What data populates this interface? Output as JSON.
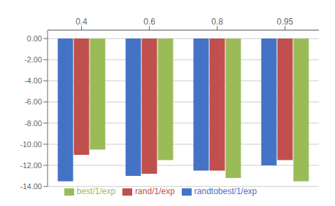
{
  "chart_data": {
    "type": "bar",
    "categories": [
      "0.4",
      "0.6",
      "0.8",
      "0.95"
    ],
    "series": [
      {
        "name": "randtobest/1/exp",
        "color": "#4472C4",
        "values": [
          -13.5,
          -13.0,
          -12.5,
          -12.0
        ]
      },
      {
        "name": "rand/1/exp",
        "color": "#C0504D",
        "values": [
          -11.0,
          -12.8,
          -12.5,
          -11.5
        ]
      },
      {
        "name": "best/1/exp",
        "color": "#9BBB59",
        "values": [
          -10.5,
          -11.5,
          -13.2,
          -13.5
        ]
      }
    ],
    "ylim": [
      -14.0,
      0.8
    ],
    "yticks": [
      {
        "value": 0.0,
        "label": "0.00"
      },
      {
        "value": -2.0,
        "label": "-2.00"
      },
      {
        "value": -4.0,
        "label": "-4.00"
      },
      {
        "value": -6.0,
        "label": "-6.00"
      },
      {
        "value": -8.0,
        "label": "-8.00"
      },
      {
        "value": -10.0,
        "label": "-10.00"
      },
      {
        "value": -12.0,
        "label": "-12.00"
      },
      {
        "value": -14.0,
        "label": "-14.00"
      }
    ],
    "grid": true,
    "legend": "bottom"
  }
}
